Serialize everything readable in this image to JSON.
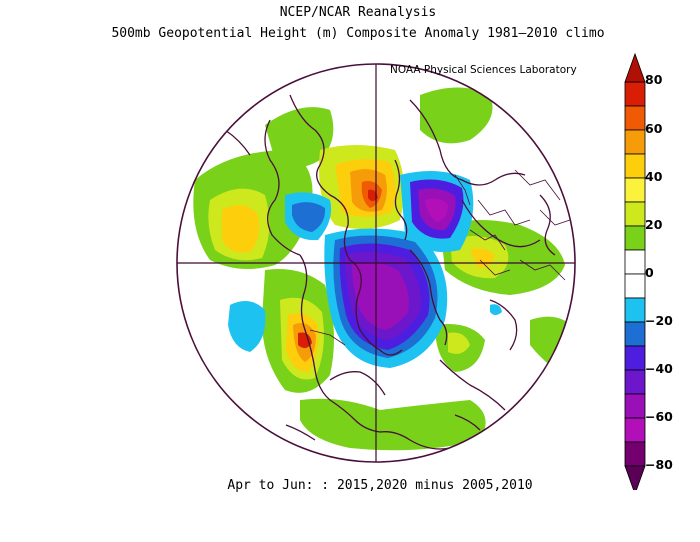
{
  "title_line1": "NCEP/NCAR Reanalysis",
  "title_line2": "500mb Geopotential Height (m) Composite Anomaly 1981–2010 climo",
  "lab": "NOAA Physical Sciences Laboratory",
  "footer": "Apr to Jun: : 2015,2020 minus 2005,2010",
  "colorbar": {
    "ticks": [
      "80",
      "60",
      "40",
      "20",
      "0",
      "−20",
      "−40",
      "−60",
      "−80"
    ],
    "colors": [
      "#d81e05",
      "#f05a05",
      "#f79c09",
      "#fdce0c",
      "#fbf23b",
      "#cde91e",
      "#79d11a",
      "#ffffff",
      "#ffffff",
      "#1ec2f1",
      "#1d6fd3",
      "#4d1ee0",
      "#6c17cc",
      "#9a10b8",
      "#b30fb8",
      "#74006f"
    ],
    "levels": [
      80,
      70,
      60,
      50,
      40,
      30,
      20,
      10,
      0,
      -10,
      -20,
      -30,
      -40,
      -50,
      -60,
      -70,
      -80
    ]
  }
}
